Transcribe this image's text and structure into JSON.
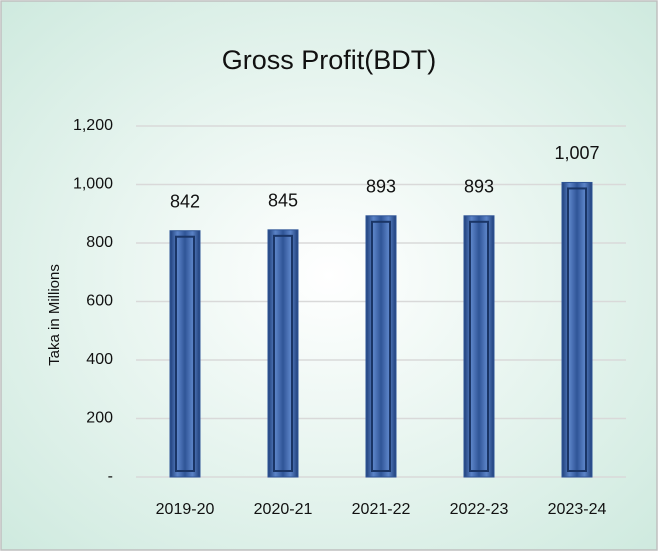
{
  "chart_data": {
    "type": "bar",
    "title": "Gross Profit(BDT)",
    "y_label": "Taka in Millions",
    "categories": [
      "2019-20",
      "2020-21",
      "2021-22",
      "2022-23",
      "2023-24"
    ],
    "values": [
      842,
      845,
      893,
      893,
      1007
    ],
    "value_labels": [
      "842",
      "845",
      "893",
      "893",
      "1,007"
    ],
    "color": "#2f5597",
    "ylim": [
      0,
      1200
    ],
    "yticks": [
      {
        "value": 0,
        "label": "-"
      },
      200,
      400,
      600,
      800,
      {
        "value": 1000,
        "label": "1,000"
      },
      {
        "value": 1200,
        "label": "1,200"
      }
    ],
    "grid": true
  }
}
